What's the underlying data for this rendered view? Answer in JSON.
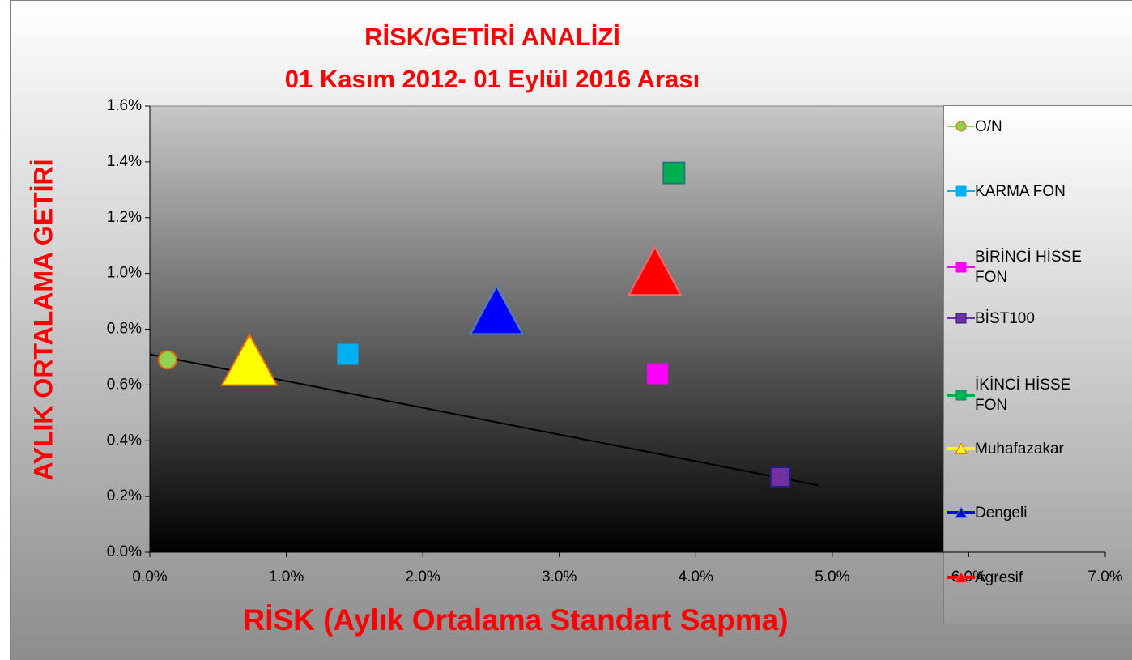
{
  "chart_data": {
    "type": "scatter",
    "title": "RİSK/GETİRİ ANALİZİ",
    "subtitle": "01 Kasım 2012- 01 Eylül 2016 Arası",
    "x_label": "RİSK (Aylık Ortalama Standart Sapma)",
    "y_label": "AYLIK ORTALAMA GETİRİ",
    "xlim": [
      0,
      7
    ],
    "ylim": [
      0,
      1.6
    ],
    "xticks": [
      {
        "value": 0,
        "label": "0.0%"
      },
      {
        "value": 1,
        "label": "1.0%"
      },
      {
        "value": 2,
        "label": "2.0%"
      },
      {
        "value": 3,
        "label": "3.0%"
      },
      {
        "value": 4,
        "label": "4.0%"
      },
      {
        "value": 5,
        "label": "5.0%"
      },
      {
        "value": 6,
        "label": "6.0%"
      },
      {
        "value": 7,
        "label": "7.0%"
      }
    ],
    "yticks": [
      {
        "value": 0,
        "label": "0.0%"
      },
      {
        "value": 0.2,
        "label": "0.2%"
      },
      {
        "value": 0.4,
        "label": "0.4%"
      },
      {
        "value": 0.6,
        "label": "0.6%"
      },
      {
        "value": 0.8,
        "label": "0.8%"
      },
      {
        "value": 1.0,
        "label": "1.0%"
      },
      {
        "value": 1.2,
        "label": "1.2%"
      },
      {
        "value": 1.4,
        "label": "1.4%"
      },
      {
        "value": 1.6,
        "label": "1.6%"
      }
    ],
    "legend": "right",
    "series": [
      {
        "name": "O/N",
        "color": "#92d050",
        "edge": "#e46c0a",
        "marker": "circle",
        "marker_size": 22,
        "x": [
          0.13
        ],
        "values": [
          0.69
        ]
      },
      {
        "name": "KARMA FON",
        "color": "#00b0f0",
        "edge": "#00b0f0",
        "marker": "square",
        "marker_size": 24,
        "x": [
          1.45
        ],
        "values": [
          0.71
        ]
      },
      {
        "name": "BİRİNCİ HİSSE FON",
        "color": "#ff00ff",
        "edge": "#ff00ff",
        "marker": "square",
        "marker_size": 24,
        "x": [
          3.72
        ],
        "values": [
          0.64
        ]
      },
      {
        "name": "BİST100",
        "color": "#7030a0",
        "edge": "#1f1f7a",
        "marker": "square",
        "marker_size": 24,
        "x": [
          4.62
        ],
        "values": [
          0.27
        ]
      },
      {
        "name": "İKİNCİ HİSSE FON",
        "color": "#00b050",
        "edge": "#1f7a7a",
        "marker": "square",
        "marker_size": 26,
        "x": [
          3.84
        ],
        "values": [
          1.36
        ]
      },
      {
        "name": "Muhafazakar",
        "color": "#ffff00",
        "edge": "#e46c0a",
        "marker": "triangle",
        "marker_size": 68,
        "x": [
          0.73
        ],
        "values": [
          0.66
        ]
      },
      {
        "name": "Dengeli",
        "color": "#0000ff",
        "edge": "#4f81bd",
        "marker": "triangle",
        "marker_size": 64,
        "x": [
          2.54
        ],
        "values": [
          0.84
        ]
      },
      {
        "name": "Agresif",
        "color": "#ff0000",
        "edge": "#ff6666",
        "marker": "triangle",
        "marker_size": 64,
        "x": [
          3.7
        ],
        "values": [
          0.98
        ]
      }
    ],
    "trendline": {
      "color": "#000000",
      "x": [
        0,
        4.9
      ],
      "values": [
        0.71,
        0.24
      ]
    }
  }
}
